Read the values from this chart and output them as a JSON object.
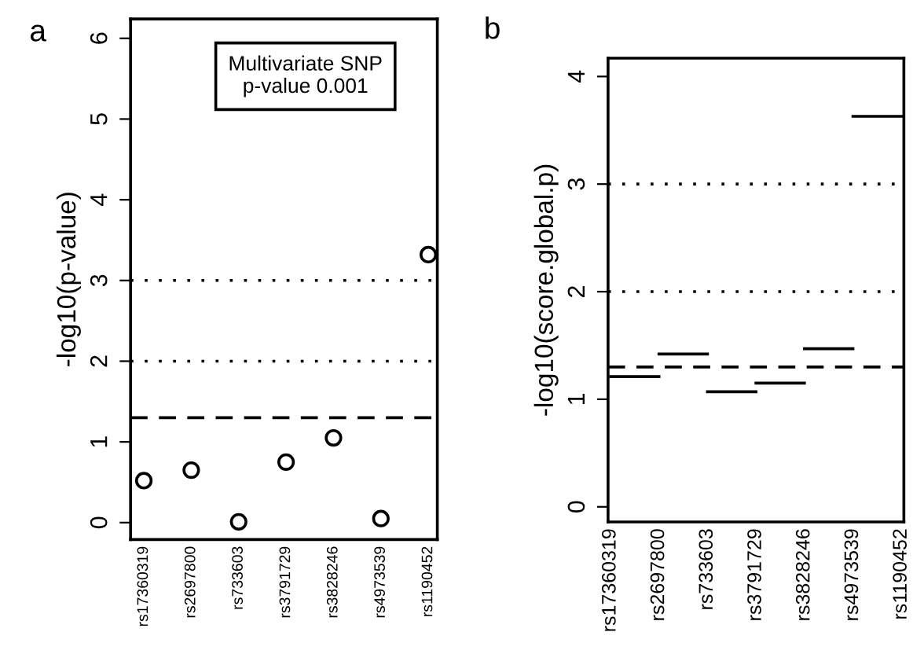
{
  "chart_data": [
    {
      "type": "scatter",
      "title": "a",
      "ylabel": "-log10(p-value)",
      "categories": [
        "rs17360319",
        "rs2697800",
        "rs733603",
        "rs3791729",
        "rs3828246",
        "rs4973539",
        "rs1190452"
      ],
      "series": [
        {
          "color": "#000000",
          "values": [
            0.52,
            0.65,
            0.01,
            0.75,
            1.05,
            0.05,
            3.32
          ]
        }
      ],
      "marker": "circle",
      "ylim": [
        -0.21,
        6.24
      ],
      "yticks": [
        0,
        1,
        2,
        3,
        4,
        5,
        6
      ],
      "grid": false,
      "legend": false,
      "ref_lines": [
        {
          "axis": "y",
          "value": 3,
          "line_style": "dotted",
          "color": "#000000"
        },
        {
          "axis": "y",
          "value": 2,
          "line_style": "dotted",
          "color": "#000000"
        },
        {
          "axis": "y",
          "value": 1.3,
          "line_style": "dashed",
          "color": "#000000"
        }
      ],
      "annotations": [
        "Multivariate SNP\np-value 0.001"
      ]
    },
    {
      "type": "line",
      "title": "b",
      "ylabel": "-log10(score.global.p)",
      "categories": [
        "rs17360319",
        "rs2697800",
        "rs733603",
        "rs3791729",
        "rs3828246",
        "rs4973539",
        "rs1190452"
      ],
      "series": [
        {
          "color": "#000000",
          "values": [
            1.21,
            1.21,
            null,
            null,
            null,
            null,
            null
          ]
        },
        {
          "color": "#000000",
          "values": [
            null,
            1.42,
            1.42,
            null,
            null,
            null,
            null
          ]
        },
        {
          "color": "#000000",
          "values": [
            null,
            null,
            1.07,
            1.07,
            null,
            null,
            null
          ]
        },
        {
          "color": "#000000",
          "values": [
            null,
            null,
            null,
            1.15,
            1.15,
            null,
            null
          ]
        },
        {
          "color": "#000000",
          "values": [
            null,
            null,
            null,
            null,
            1.47,
            1.47,
            null
          ]
        },
        {
          "color": "#000000",
          "values": [
            null,
            null,
            null,
            null,
            null,
            3.63,
            3.63
          ]
        }
      ],
      "marker": "none",
      "line_style": "solid",
      "ylim": [
        -0.14,
        4.17
      ],
      "yticks": [
        0,
        1,
        2,
        3,
        4
      ],
      "grid": false,
      "legend": false,
      "ref_lines": [
        {
          "axis": "y",
          "value": 3,
          "line_style": "dotted",
          "color": "#000000"
        },
        {
          "axis": "y",
          "value": 2,
          "line_style": "dotted",
          "color": "#000000"
        },
        {
          "axis": "y",
          "value": 1.3,
          "line_style": "dashed",
          "color": "#000000"
        }
      ]
    }
  ]
}
